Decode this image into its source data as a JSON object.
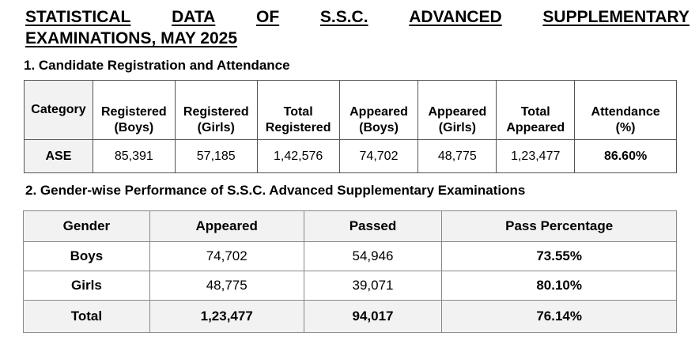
{
  "title": {
    "words": [
      "STATISTICAL",
      "DATA",
      "OF",
      "S.S.C.",
      "ADVANCED",
      "SUPPLEMENTARY"
    ],
    "line2": "EXAMINATIONS, MAY 2025"
  },
  "section1": {
    "heading": "1.   Candidate Registration and Attendance",
    "headers": {
      "category": "Category",
      "registered_boys": [
        "Registered",
        "(Boys)"
      ],
      "registered_girls": [
        "Registered",
        "(Girls)"
      ],
      "total_registered": [
        "Total",
        "Registered"
      ],
      "appeared_boys": [
        "Appeared",
        "(Boys)"
      ],
      "appeared_girls": [
        "Appeared",
        "(Girls)"
      ],
      "total_appeared": [
        "Total",
        "Appeared"
      ],
      "attendance": [
        "Attendance",
        "(%)"
      ]
    },
    "row": {
      "category": "ASE",
      "registered_boys": "85,391",
      "registered_girls": "57,185",
      "total_registered": "1,42,576",
      "appeared_boys": "74,702",
      "appeared_girls": "48,775",
      "total_appeared": "1,23,477",
      "attendance": "86.60%"
    }
  },
  "section2": {
    "heading": "2.  Gender-wise Performance of S.S.C. Advanced Supplementary Examinations",
    "headers": [
      "Gender",
      "Appeared",
      "Passed",
      "Pass Percentage"
    ],
    "rows": [
      {
        "gender": "Boys",
        "appeared": "74,702",
        "passed": "54,946",
        "pass_pct": "73.55%"
      },
      {
        "gender": "Girls",
        "appeared": "48,775",
        "passed": "39,071",
        "pass_pct": "80.10%"
      },
      {
        "gender": "Total",
        "appeared": "1,23,477",
        "passed": "94,017",
        "pass_pct": "76.14%"
      }
    ]
  }
}
